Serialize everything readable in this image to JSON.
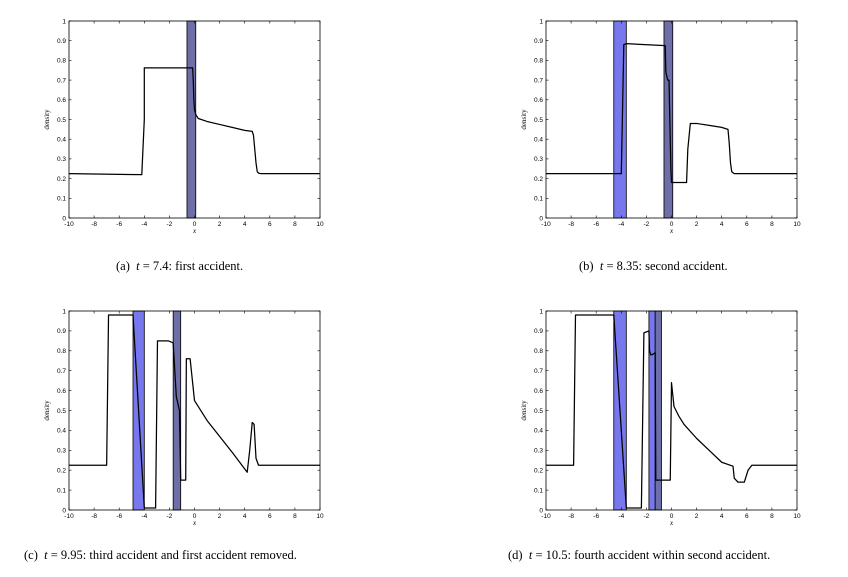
{
  "chart_data": [
    {
      "type": "line",
      "panel_id": "a",
      "caption": {
        "label": "(a)",
        "var": "t",
        "rest": " = 7.4: first accident."
      },
      "xlabel": "x",
      "ylabel": "density",
      "xlim": [
        -10,
        10
      ],
      "ylim": [
        0,
        1
      ],
      "xticks": [
        "-10",
        "-8",
        "-6",
        "-4",
        "-2",
        "0",
        "2",
        "4",
        "6",
        "8",
        "10"
      ],
      "yticks": [
        "0",
        "0.1",
        "0.2",
        "0.3",
        "0.4",
        "0.5",
        "0.6",
        "0.7",
        "0.8",
        "0.9",
        "1"
      ],
      "accidents": [
        {
          "x0": -0.6,
          "x1": 0.1,
          "color": "#6e6ea8"
        }
      ],
      "series": [
        {
          "name": "density",
          "x": [
            -10,
            -4.2,
            -4.2,
            -4.0,
            -4.0,
            -0.15,
            -0.1,
            -0.05,
            0.0,
            0.1,
            0.3,
            1.0,
            2.0,
            3.0,
            4.0,
            4.6,
            4.7,
            4.8,
            4.9,
            5.0,
            5.1,
            5.3,
            10
          ],
          "y": [
            0.225,
            0.22,
            0.22,
            0.5,
            0.762,
            0.762,
            0.7,
            0.6,
            0.55,
            0.525,
            0.505,
            0.49,
            0.475,
            0.46,
            0.445,
            0.44,
            0.42,
            0.35,
            0.28,
            0.235,
            0.228,
            0.225,
            0.225
          ]
        }
      ]
    },
    {
      "type": "line",
      "panel_id": "b",
      "caption": {
        "label": "(b)",
        "var": "t",
        "rest": " = 8.35: second accident."
      },
      "xlabel": "x",
      "ylabel": "density",
      "xlim": [
        -10,
        10
      ],
      "ylim": [
        0,
        1
      ],
      "xticks": [
        "-10",
        "-8",
        "-6",
        "-4",
        "-2",
        "0",
        "2",
        "4",
        "6",
        "8",
        "10"
      ],
      "yticks": [
        "0",
        "0.1",
        "0.2",
        "0.3",
        "0.4",
        "0.5",
        "0.6",
        "0.7",
        "0.8",
        "0.9",
        "1"
      ],
      "accidents": [
        {
          "x0": -4.6,
          "x1": -3.6,
          "color": "#7777ee"
        },
        {
          "x0": -0.6,
          "x1": 0.1,
          "color": "#6e6ea8"
        }
      ],
      "series": [
        {
          "name": "density",
          "x": [
            -10,
            -4.0,
            -3.8,
            -3.6,
            -0.5,
            -0.45,
            -0.3,
            -0.2,
            -0.05,
            0.0,
            0.1,
            1.2,
            1.3,
            1.5,
            2.0,
            3.0,
            4.0,
            4.5,
            4.6,
            4.7,
            4.8,
            5.0,
            10
          ],
          "y": [
            0.225,
            0.225,
            0.88,
            0.885,
            0.875,
            0.74,
            0.7,
            0.7,
            0.25,
            0.18,
            0.18,
            0.18,
            0.35,
            0.48,
            0.48,
            0.47,
            0.46,
            0.45,
            0.38,
            0.28,
            0.235,
            0.225,
            0.225
          ]
        }
      ]
    },
    {
      "type": "line",
      "panel_id": "c",
      "caption": {
        "label": "(c)",
        "var": "t",
        "rest": " = 9.95: third accident and first accident removed."
      },
      "xlabel": "x",
      "ylabel": "density",
      "xlim": [
        -10,
        10
      ],
      "ylim": [
        0,
        1
      ],
      "xticks": [
        "-10",
        "-8",
        "-6",
        "-4",
        "-2",
        "0",
        "2",
        "4",
        "6",
        "8",
        "10"
      ],
      "yticks": [
        "0",
        "0.1",
        "0.2",
        "0.3",
        "0.4",
        "0.5",
        "0.6",
        "0.7",
        "0.8",
        "0.9",
        "1"
      ],
      "accidents": [
        {
          "x0": -4.9,
          "x1": -4.0,
          "color": "#7777ee"
        },
        {
          "x0": -1.7,
          "x1": -1.1,
          "color": "#6e6ea8"
        }
      ],
      "series": [
        {
          "name": "density",
          "x": [
            -10,
            -7.0,
            -6.85,
            -5.0,
            -4.9,
            -4.0,
            -3.9,
            -3.1,
            -2.95,
            -2.1,
            -1.7,
            -1.45,
            -1.2,
            -1.1,
            -0.7,
            -0.65,
            -0.55,
            -0.35,
            0.0,
            1.0,
            2.0,
            3.0,
            4.2,
            4.4,
            4.6,
            4.75,
            4.9,
            5.1,
            10
          ],
          "y": [
            0.225,
            0.225,
            0.98,
            0.98,
            0.98,
            0.01,
            0.01,
            0.01,
            0.85,
            0.85,
            0.84,
            0.57,
            0.5,
            0.15,
            0.15,
            0.76,
            0.76,
            0.76,
            0.55,
            0.45,
            0.37,
            0.29,
            0.19,
            0.3,
            0.44,
            0.43,
            0.26,
            0.225,
            0.225
          ]
        }
      ]
    },
    {
      "type": "line",
      "panel_id": "d",
      "caption": {
        "label": "(d)",
        "var": "t",
        "rest": " = 10.5: fourth accident within second accident."
      },
      "xlabel": "x",
      "ylabel": "density",
      "xlim": [
        -10,
        10
      ],
      "ylim": [
        0,
        1
      ],
      "xticks": [
        "-10",
        "-8",
        "-6",
        "-4",
        "-2",
        "0",
        "2",
        "4",
        "6",
        "8",
        "10"
      ],
      "yticks": [
        "0",
        "0.1",
        "0.2",
        "0.3",
        "0.4",
        "0.5",
        "0.6",
        "0.7",
        "0.8",
        "0.9",
        "1"
      ],
      "accidents": [
        {
          "x0": -4.6,
          "x1": -3.6,
          "color": "#7777ee"
        },
        {
          "x0": -1.8,
          "x1": -1.3,
          "color": "#7777ee"
        },
        {
          "x0": -1.3,
          "x1": -0.8,
          "color": "#6e6ea8"
        }
      ],
      "series": [
        {
          "name": "density",
          "x": [
            -10,
            -7.8,
            -7.65,
            -5.0,
            -4.6,
            -3.6,
            -3.5,
            -2.4,
            -2.2,
            -1.8,
            -1.75,
            -1.65,
            -1.55,
            -1.3,
            -1.25,
            -0.8,
            -0.1,
            0.0,
            0.2,
            0.6,
            1.0,
            2.0,
            3.0,
            4.0,
            4.9,
            5.0,
            5.3,
            5.8,
            6.1,
            6.4,
            10
          ],
          "y": [
            0.225,
            0.225,
            0.98,
            0.98,
            0.98,
            0.01,
            0.01,
            0.01,
            0.89,
            0.9,
            0.8,
            0.78,
            0.78,
            0.79,
            0.15,
            0.15,
            0.15,
            0.64,
            0.52,
            0.47,
            0.43,
            0.36,
            0.3,
            0.24,
            0.22,
            0.16,
            0.14,
            0.14,
            0.2,
            0.225,
            0.225
          ]
        }
      ]
    }
  ]
}
